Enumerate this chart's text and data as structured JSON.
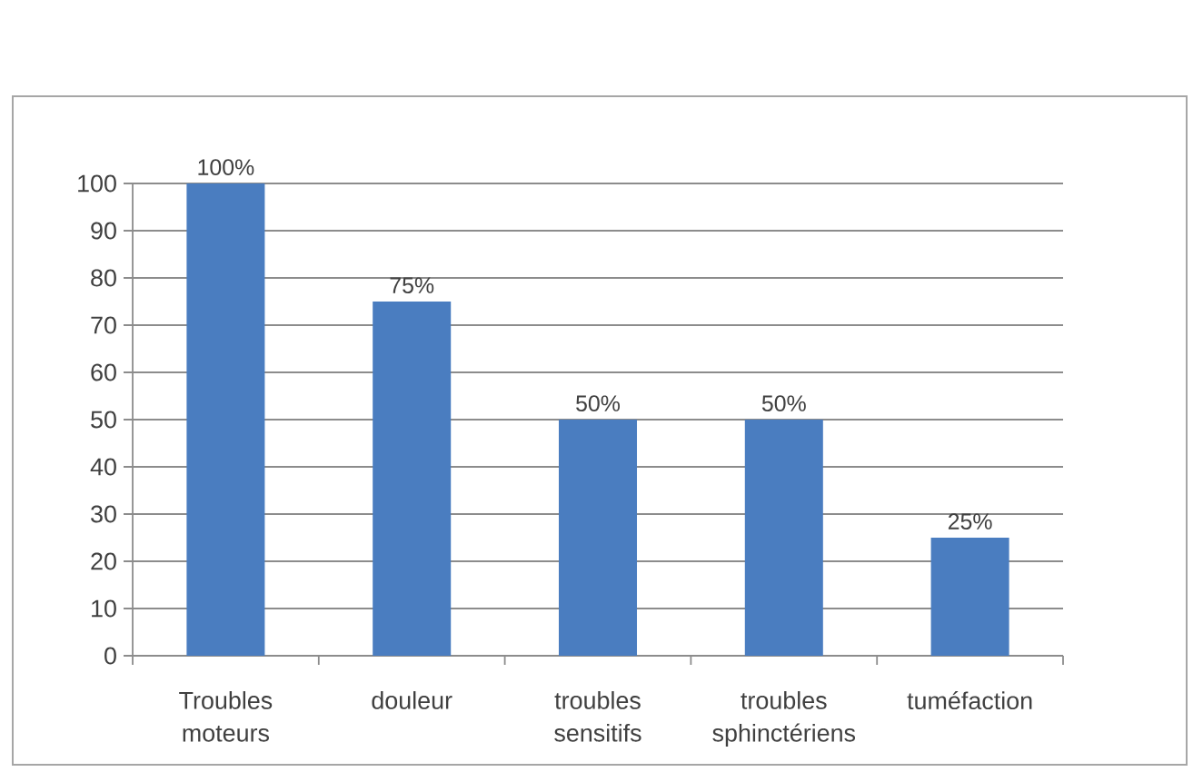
{
  "chart_data": {
    "type": "bar",
    "categories": [
      "Troubles moteurs",
      "douleur",
      "troubles sensitifs",
      "troubles sphinctériens",
      "tuméfaction"
    ],
    "values": [
      100,
      75,
      50,
      50,
      25
    ],
    "value_labels": [
      "100%",
      "75%",
      "50%",
      "50%",
      "25%"
    ],
    "color": "#4a7dc0",
    "ylim": [
      0,
      100
    ],
    "yticks": [
      0,
      10,
      20,
      30,
      40,
      50,
      60,
      70,
      80,
      90,
      100
    ],
    "grid": "y"
  }
}
